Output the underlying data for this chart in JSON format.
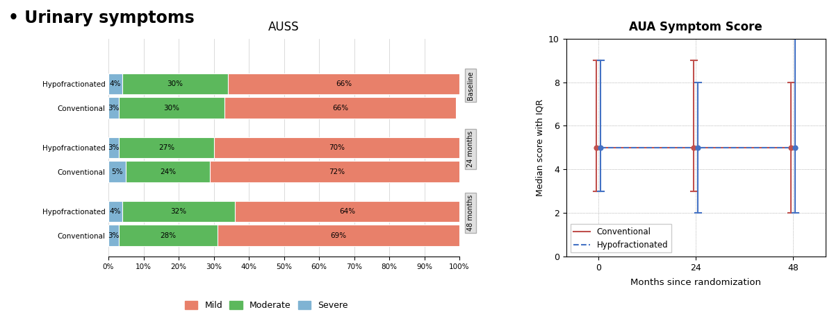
{
  "title": "• Urinary symptoms",
  "left_title": "AUSS",
  "right_title": "AUA Symptom Score",
  "bar_groups": [
    {
      "label": "Baseline",
      "rows": [
        {
          "name": "Hypofractionated",
          "severe": 4,
          "moderate": 30,
          "mild": 66
        },
        {
          "name": "Conventional",
          "severe": 3,
          "moderate": 30,
          "mild": 66
        }
      ]
    },
    {
      "label": "24 months",
      "rows": [
        {
          "name": "Hypofractionated",
          "severe": 3,
          "moderate": 27,
          "mild": 70
        },
        {
          "name": "Conventional",
          "severe": 5,
          "moderate": 24,
          "mild": 72
        }
      ]
    },
    {
      "label": "48 months",
      "rows": [
        {
          "name": "Hypofractionated",
          "severe": 4,
          "moderate": 32,
          "mild": 64
        },
        {
          "name": "Conventional",
          "severe": 3,
          "moderate": 28,
          "mild": 69
        }
      ]
    }
  ],
  "bar_colors": {
    "mild": "#E8806A",
    "moderate": "#5CB85C",
    "severe": "#7FB3D3"
  },
  "line_data": {
    "months": [
      0,
      24,
      48
    ],
    "conventional": {
      "median": [
        5,
        5,
        5
      ],
      "iqr_low": [
        3,
        3,
        2
      ],
      "iqr_high": [
        9,
        9,
        8
      ],
      "color": "#C0504D",
      "linestyle": "-"
    },
    "hypofractionated": {
      "median": [
        5,
        5,
        5
      ],
      "iqr_low": [
        3,
        2,
        2
      ],
      "iqr_high": [
        9,
        8,
        10
      ],
      "color": "#4472C4",
      "linestyle": "--"
    }
  },
  "right_ylabel": "Median score with IQR",
  "right_xlabel": "Months since randomization",
  "right_ylim": [
    0,
    10
  ],
  "right_yticks": [
    0,
    2,
    4,
    6,
    8,
    10
  ],
  "right_xticks": [
    0,
    24,
    48
  ],
  "bg_color": "#FFFFFF"
}
